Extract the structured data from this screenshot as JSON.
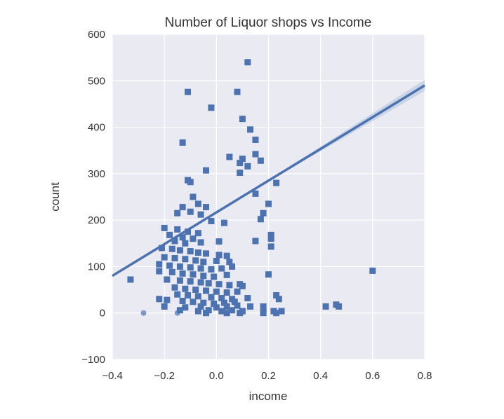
{
  "chart_data": {
    "type": "scatter",
    "title": "Number of Liquor shops vs Income",
    "xlabel": "income",
    "ylabel": "count",
    "xlim": [
      -0.4,
      0.8
    ],
    "ylim": [
      -100,
      600
    ],
    "xticks": [
      -0.4,
      -0.2,
      0.0,
      0.2,
      0.4,
      0.6,
      0.8
    ],
    "xtick_labels": [
      "−0.4",
      "−0.2",
      "0.0",
      "0.2",
      "0.4",
      "0.6",
      "0.8"
    ],
    "yticks": [
      -100,
      0,
      100,
      200,
      300,
      400,
      500,
      600
    ],
    "ytick_labels": [
      "−100",
      "0",
      "100",
      "200",
      "300",
      "400",
      "500",
      "600"
    ],
    "grid": true,
    "colors": {
      "background": "#eaeaf2",
      "grid": "#ffffff",
      "points": "#4c72b0",
      "line": "#4c72b0",
      "ci_band": "#b4c4e0"
    },
    "regression": {
      "x": [
        -0.4,
        0.8
      ],
      "y": [
        80,
        490
      ]
    },
    "points": [
      {
        "x": 0.12,
        "y": 540
      },
      {
        "x": -0.11,
        "y": 476
      },
      {
        "x": 0.08,
        "y": 476
      },
      {
        "x": -0.02,
        "y": 442
      },
      {
        "x": 0.1,
        "y": 418
      },
      {
        "x": 0.13,
        "y": 395
      },
      {
        "x": -0.13,
        "y": 367
      },
      {
        "x": 0.15,
        "y": 373
      },
      {
        "x": 0.05,
        "y": 336
      },
      {
        "x": 0.15,
        "y": 342
      },
      {
        "x": 0.09,
        "y": 323
      },
      {
        "x": 0.1,
        "y": 332
      },
      {
        "x": 0.17,
        "y": 328
      },
      {
        "x": 0.12,
        "y": 316
      },
      {
        "x": 0.09,
        "y": 302
      },
      {
        "x": -0.04,
        "y": 307
      },
      {
        "x": -0.11,
        "y": 286
      },
      {
        "x": -0.1,
        "y": 282
      },
      {
        "x": 0.23,
        "y": 280
      },
      {
        "x": 0.15,
        "y": 257
      },
      {
        "x": -0.09,
        "y": 250
      },
      {
        "x": -0.07,
        "y": 235
      },
      {
        "x": -0.13,
        "y": 228
      },
      {
        "x": -0.04,
        "y": 228
      },
      {
        "x": 0.2,
        "y": 235
      },
      {
        "x": -0.1,
        "y": 218
      },
      {
        "x": -0.15,
        "y": 215
      },
      {
        "x": -0.06,
        "y": 212
      },
      {
        "x": 0.18,
        "y": 215
      },
      {
        "x": -0.02,
        "y": 198
      },
      {
        "x": 0.03,
        "y": 194
      },
      {
        "x": 0.17,
        "y": 202
      },
      {
        "x": -0.2,
        "y": 183
      },
      {
        "x": -0.15,
        "y": 180
      },
      {
        "x": -0.11,
        "y": 175
      },
      {
        "x": -0.07,
        "y": 172
      },
      {
        "x": -0.18,
        "y": 168
      },
      {
        "x": -0.13,
        "y": 163
      },
      {
        "x": -0.09,
        "y": 160
      },
      {
        "x": -0.16,
        "y": 155
      },
      {
        "x": -0.12,
        "y": 150
      },
      {
        "x": -0.06,
        "y": 152
      },
      {
        "x": 0.01,
        "y": 154
      },
      {
        "x": 0.21,
        "y": 168
      },
      {
        "x": 0.21,
        "y": 160
      },
      {
        "x": 0.15,
        "y": 155
      },
      {
        "x": 0.21,
        "y": 143
      },
      {
        "x": -0.21,
        "y": 140
      },
      {
        "x": -0.17,
        "y": 138
      },
      {
        "x": -0.14,
        "y": 135
      },
      {
        "x": -0.1,
        "y": 133
      },
      {
        "x": -0.07,
        "y": 130
      },
      {
        "x": -0.04,
        "y": 128
      },
      {
        "x": 0.01,
        "y": 125
      },
      {
        "x": 0.04,
        "y": 123
      },
      {
        "x": -0.2,
        "y": 120
      },
      {
        "x": -0.16,
        "y": 118
      },
      {
        "x": -0.12,
        "y": 116
      },
      {
        "x": -0.08,
        "y": 113
      },
      {
        "x": -0.05,
        "y": 110
      },
      {
        "x": 0.0,
        "y": 112
      },
      {
        "x": 0.05,
        "y": 110
      },
      {
        "x": -0.22,
        "y": 105
      },
      {
        "x": -0.18,
        "y": 102
      },
      {
        "x": -0.14,
        "y": 100
      },
      {
        "x": -0.1,
        "y": 98
      },
      {
        "x": -0.06,
        "y": 96
      },
      {
        "x": -0.02,
        "y": 94
      },
      {
        "x": 0.02,
        "y": 96
      },
      {
        "x": 0.06,
        "y": 100
      },
      {
        "x": -0.22,
        "y": 90
      },
      {
        "x": -0.17,
        "y": 88
      },
      {
        "x": -0.13,
        "y": 85
      },
      {
        "x": -0.09,
        "y": 83
      },
      {
        "x": -0.05,
        "y": 80
      },
      {
        "x": -0.01,
        "y": 78
      },
      {
        "x": 0.04,
        "y": 82
      },
      {
        "x": 0.2,
        "y": 83
      },
      {
        "x": 0.6,
        "y": 91
      },
      {
        "x": -0.33,
        "y": 72
      },
      {
        "x": -0.19,
        "y": 72
      },
      {
        "x": -0.14,
        "y": 70
      },
      {
        "x": -0.1,
        "y": 68
      },
      {
        "x": -0.06,
        "y": 66
      },
      {
        "x": -0.03,
        "y": 64
      },
      {
        "x": 0.01,
        "y": 62
      },
      {
        "x": 0.05,
        "y": 60
      },
      {
        "x": 0.09,
        "y": 62
      },
      {
        "x": 0.1,
        "y": 58
      },
      {
        "x": -0.16,
        "y": 55
      },
      {
        "x": -0.12,
        "y": 52
      },
      {
        "x": -0.08,
        "y": 50
      },
      {
        "x": -0.04,
        "y": 48
      },
      {
        "x": 0.0,
        "y": 46
      },
      {
        "x": 0.04,
        "y": 44
      },
      {
        "x": 0.08,
        "y": 46
      },
      {
        "x": -0.15,
        "y": 40
      },
      {
        "x": -0.11,
        "y": 38
      },
      {
        "x": -0.07,
        "y": 36
      },
      {
        "x": -0.02,
        "y": 34
      },
      {
        "x": 0.02,
        "y": 32
      },
      {
        "x": 0.06,
        "y": 30
      },
      {
        "x": 0.12,
        "y": 32
      },
      {
        "x": 0.23,
        "y": 38
      },
      {
        "x": -0.22,
        "y": 30
      },
      {
        "x": -0.19,
        "y": 28
      },
      {
        "x": -0.13,
        "y": 26
      },
      {
        "x": -0.09,
        "y": 24
      },
      {
        "x": -0.05,
        "y": 22
      },
      {
        "x": -0.01,
        "y": 20
      },
      {
        "x": 0.03,
        "y": 22
      },
      {
        "x": 0.07,
        "y": 24
      },
      {
        "x": 0.24,
        "y": 30
      },
      {
        "x": -0.2,
        "y": 14
      },
      {
        "x": -0.12,
        "y": 12
      },
      {
        "x": -0.06,
        "y": 14
      },
      {
        "x": 0.0,
        "y": 12
      },
      {
        "x": 0.04,
        "y": 14
      },
      {
        "x": 0.08,
        "y": 16
      },
      {
        "x": 0.13,
        "y": 14
      },
      {
        "x": 0.18,
        "y": 14
      },
      {
        "x": 0.42,
        "y": 14
      },
      {
        "x": 0.46,
        "y": 18
      },
      {
        "x": 0.47,
        "y": 14
      },
      {
        "x": -0.14,
        "y": 6
      },
      {
        "x": -0.07,
        "y": 4
      },
      {
        "x": -0.03,
        "y": 6
      },
      {
        "x": 0.02,
        "y": 4
      },
      {
        "x": 0.06,
        "y": 6
      },
      {
        "x": 0.1,
        "y": 4
      },
      {
        "x": 0.18,
        "y": 6
      },
      {
        "x": 0.22,
        "y": 4
      },
      {
        "x": 0.25,
        "y": 4
      },
      {
        "x": -0.04,
        "y": 0
      },
      {
        "x": 0.04,
        "y": 0
      },
      {
        "x": 0.09,
        "y": 0
      },
      {
        "x": 0.18,
        "y": 0
      },
      {
        "x": 0.23,
        "y": 0
      },
      {
        "x": -0.28,
        "y": 0
      },
      {
        "x": -0.15,
        "y": 0
      }
    ]
  }
}
